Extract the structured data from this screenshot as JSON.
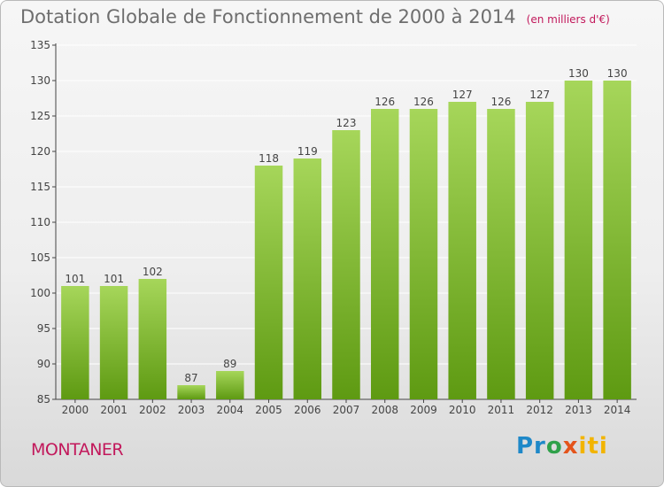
{
  "title": "Dotation Globale de Fonctionnement de 2000 à 2014",
  "subtitle": "(en milliers d'€)",
  "place": "MONTANER",
  "brand": {
    "logo_text": "Proxiti"
  },
  "colors": {
    "bar_top": "#a6d65a",
    "bar_bottom": "#5e9a12",
    "accent": "#c2185b",
    "axis": "#444444",
    "grid": "#ffffff"
  },
  "chart_data": {
    "type": "bar",
    "categories": [
      "2000",
      "2001",
      "2002",
      "2003",
      "2004",
      "2005",
      "2006",
      "2007",
      "2008",
      "2009",
      "2010",
      "2011",
      "2012",
      "2013",
      "2014"
    ],
    "values": [
      101,
      101,
      102,
      87,
      89,
      118,
      119,
      123,
      126,
      126,
      127,
      126,
      127,
      130,
      130
    ],
    "ylim": [
      85,
      135
    ],
    "yticks": [
      85,
      90,
      95,
      100,
      105,
      110,
      115,
      120,
      125,
      130,
      135
    ],
    "xlabel": "",
    "ylabel": "",
    "grid": true,
    "data_labels": true
  }
}
